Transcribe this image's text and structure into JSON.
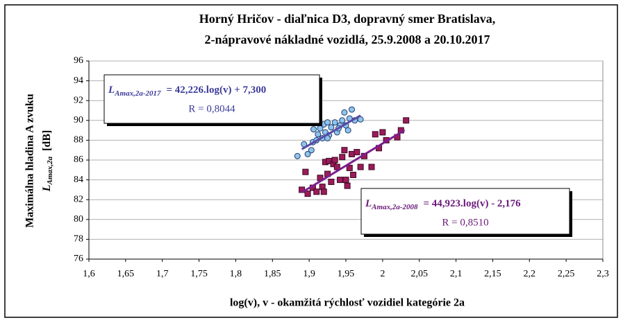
{
  "chart_data": {
    "type": "scatter",
    "title": [
      "Horný Hričov - diaľnica D3, dopravný smer Bratislava,",
      "2-nápravové nákladné vozidlá, 25.9.2008 a 20.10.2017"
    ],
    "xlabel": "log(v), v - okamžitá rýchlosť vozidiel kategórie 2a",
    "ylabel": "Maximálna hladina A zvuku",
    "ylabel_symbol": "L",
    "ylabel_subscript": "Amax,2a",
    "ylabel_unit": "[dB]",
    "xlim": [
      1.6,
      2.3
    ],
    "xticks": [
      {
        "value": 1.6,
        "label": "1,6"
      },
      {
        "value": 1.65,
        "label": "1,65"
      },
      {
        "value": 1.7,
        "label": "1,7"
      },
      {
        "value": 1.75,
        "label": "1,75"
      },
      {
        "value": 1.8,
        "label": "1,8"
      },
      {
        "value": 1.85,
        "label": "1,85"
      },
      {
        "value": 1.9,
        "label": "1,9"
      },
      {
        "value": 1.95,
        "label": "1,95"
      },
      2,
      {
        "value": 2.05,
        "label": "2,05"
      },
      {
        "value": 2.1,
        "label": "2,1"
      },
      {
        "value": 2.15,
        "label": "2,15"
      },
      {
        "value": 2.2,
        "label": "2,2"
      },
      {
        "value": 2.25,
        "label": "2,25"
      },
      {
        "value": 2.3,
        "label": "2,3"
      }
    ],
    "ylim": [
      76,
      96
    ],
    "yticks": [
      76,
      78,
      80,
      82,
      84,
      86,
      88,
      90,
      92,
      94,
      96
    ],
    "grid": true,
    "series": [
      {
        "marker": "circle",
        "color": "#8fc3ec",
        "stroke": "#1f3e6e",
        "x": [
          1.884,
          1.893,
          1.898,
          1.903,
          1.905,
          1.906,
          1.91,
          1.912,
          1.915,
          1.918,
          1.92,
          1.922,
          1.925,
          1.927,
          1.93,
          1.935,
          1.938,
          1.942,
          1.945,
          1.948,
          1.95,
          1.953,
          1.955,
          1.958,
          1.962,
          1.97,
          1.925,
          1.94
        ],
        "values": [
          86.4,
          87.6,
          86.6,
          87.0,
          87.8,
          89.1,
          88.0,
          88.6,
          89.2,
          88.2,
          89.6,
          88.8,
          89.8,
          88.5,
          89.3,
          89.8,
          88.8,
          89.5,
          90.0,
          90.8,
          89.5,
          89.0,
          90.2,
          91.1,
          90.0,
          90.1,
          88.2,
          89.2
        ]
      },
      {
        "marker": "square",
        "color": "#9b1b5a",
        "stroke": "#3a0a22",
        "x": [
          1.89,
          1.895,
          1.898,
          1.905,
          1.91,
          1.915,
          1.918,
          1.92,
          1.922,
          1.925,
          1.927,
          1.93,
          1.933,
          1.935,
          1.938,
          1.942,
          1.945,
          1.948,
          1.95,
          1.952,
          1.955,
          1.958,
          1.965,
          1.97,
          1.975,
          1.985,
          1.99,
          1.995,
          2.0,
          2.005,
          2.02,
          2.025,
          2.032,
          1.96
        ],
        "values": [
          83.0,
          84.8,
          82.6,
          83.2,
          82.8,
          84.2,
          83.3,
          82.8,
          85.8,
          84.6,
          85.9,
          83.8,
          85.6,
          86.0,
          85.3,
          84.0,
          86.3,
          87.0,
          84.0,
          83.4,
          85.2,
          86.6,
          86.8,
          85.3,
          86.4,
          85.3,
          88.6,
          87.2,
          88.8,
          88.0,
          88.3,
          89.0,
          90.0,
          84.5
        ]
      }
    ],
    "trendlines": [
      {
        "color": "#5a4ba8",
        "x": [
          1.89,
          1.97
        ],
        "values": [
          87.1,
          90.5
        ]
      },
      {
        "color": "#7b1f8e",
        "x": [
          1.89,
          2.03
        ],
        "values": [
          82.73,
          89.02
        ]
      }
    ],
    "annotations": [
      {
        "color": "#3b3b9a",
        "symbol": "L",
        "subscript": "Amax,2a-2017",
        "equation": "= 42,226.log(v) + 7,300",
        "r": "R = 0,8044"
      },
      {
        "color": "#6a1a7a",
        "symbol": "L",
        "subscript": "Amax,2a-2008",
        "equation": "= 44,923.log(v) - 2,176",
        "r": "R = 0,8510"
      }
    ]
  }
}
